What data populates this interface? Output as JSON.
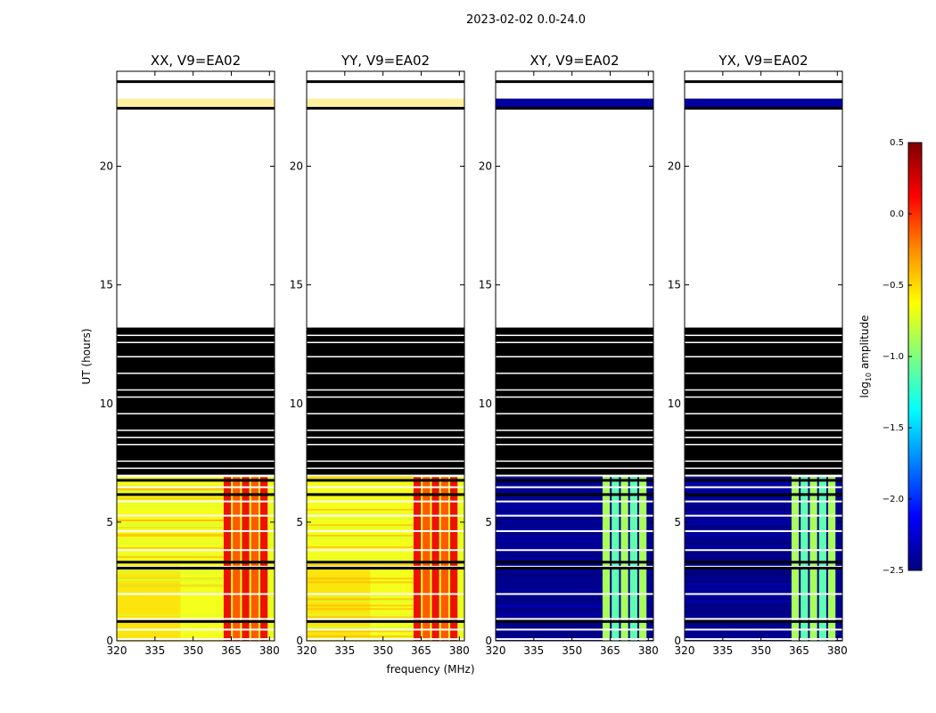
{
  "chart_data": {
    "type": "heatmap",
    "suptitle": "2023-02-02 0.0-24.0",
    "xlabel": "frequency (MHz)",
    "ylabel": "UT (hours)",
    "xlim": [
      320,
      382
    ],
    "ylim": [
      0,
      24
    ],
    "xticks": [
      320,
      335,
      350,
      365,
      380
    ],
    "yticks": [
      0,
      5,
      10,
      15,
      20
    ],
    "colorbar": {
      "label": "log",
      "label_sub": "10",
      "label_suffix": " amplitude",
      "range": [
        -2.5,
        0.5
      ],
      "ticks": [
        "0.5",
        "0.0",
        "−0.5",
        "−1.0",
        "−1.5",
        "−2.0",
        "−2.5"
      ],
      "colors": [
        "#7f0000",
        "#ff0000",
        "#ff8c00",
        "#ffff00",
        "#7fff7f",
        "#00ffff",
        "#007fff",
        "#0000ff",
        "#00007f"
      ]
    },
    "panels": [
      {
        "title": "XX, V9=EA02",
        "kind": "parallel"
      },
      {
        "title": "YY, V9=EA02",
        "kind": "parallel"
      },
      {
        "title": "XY, V9=EA02",
        "kind": "cross"
      },
      {
        "title": "YX, V9=EA02",
        "kind": "cross"
      }
    ],
    "flagged_ranges_hours": [
      [
        7.0,
        13.2
      ],
      [
        23.5,
        23.6
      ]
    ],
    "empty_ranges_hours": [
      [
        13.2,
        22.4
      ],
      [
        23.6,
        24.0
      ]
    ],
    "rfi_band_MHz": [
      362,
      380
    ]
  }
}
